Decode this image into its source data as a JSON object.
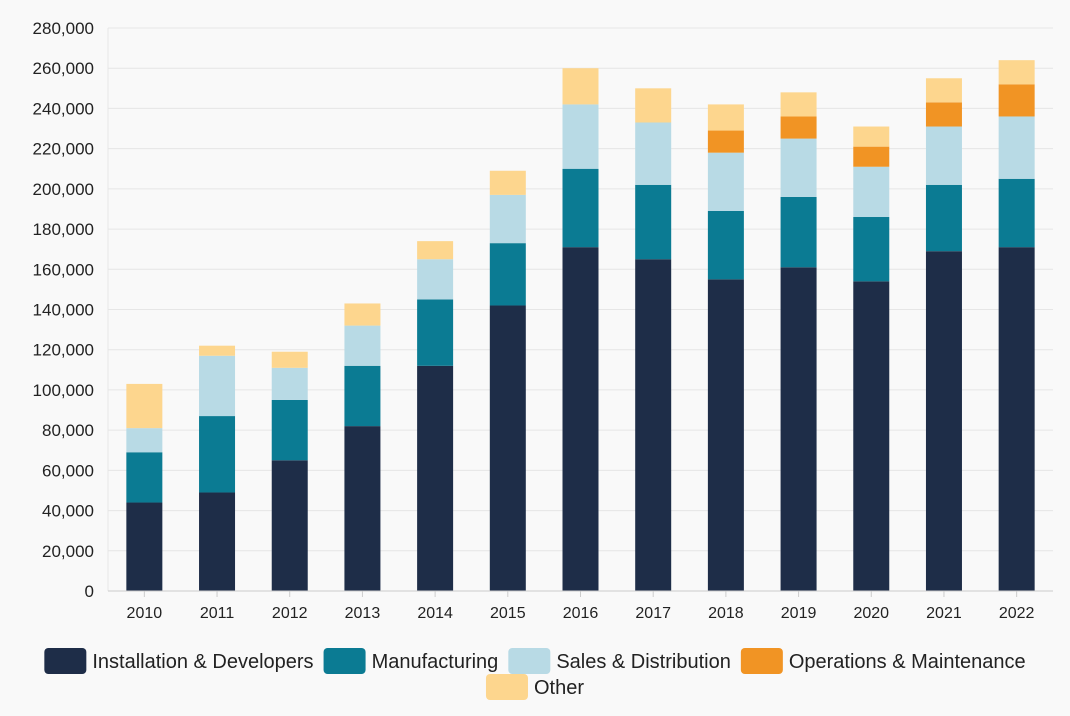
{
  "chart_data": {
    "type": "bar",
    "stacked": true,
    "title": "",
    "xlabel": "",
    "ylabel": "",
    "ylim": [
      0,
      280000
    ],
    "y_ticks": [
      0,
      20000,
      40000,
      60000,
      80000,
      100000,
      120000,
      140000,
      160000,
      180000,
      200000,
      220000,
      240000,
      260000,
      280000
    ],
    "y_tick_labels": [
      "0",
      "20,000",
      "40,000",
      "60,000",
      "80,000",
      "100,000",
      "120,000",
      "140,000",
      "160,000",
      "180,000",
      "200,000",
      "220,000",
      "240,000",
      "260,000",
      "280,000"
    ],
    "grid": true,
    "legend_position": "bottom",
    "categories": [
      "2010",
      "2011",
      "2012",
      "2013",
      "2014",
      "2015",
      "2016",
      "2017",
      "2018",
      "2019",
      "2020",
      "2021",
      "2022"
    ],
    "series": [
      {
        "name": "Installation & Developers",
        "color": "#1e2d48",
        "values": [
          44000,
          49000,
          65000,
          82000,
          112000,
          142000,
          171000,
          165000,
          155000,
          161000,
          154000,
          169000,
          171000
        ]
      },
      {
        "name": "Manufacturing",
        "color": "#0b7b93",
        "values": [
          25000,
          38000,
          30000,
          30000,
          33000,
          31000,
          39000,
          37000,
          34000,
          35000,
          32000,
          33000,
          34000
        ]
      },
      {
        "name": "Sales & Distribution",
        "color": "#b8dae5",
        "values": [
          12000,
          30000,
          16000,
          20000,
          20000,
          24000,
          32000,
          31000,
          29000,
          29000,
          25000,
          29000,
          31000
        ]
      },
      {
        "name": "Operations & Maintenance",
        "color": "#f19424",
        "values": [
          0,
          0,
          0,
          0,
          0,
          0,
          0,
          0,
          11000,
          11000,
          10000,
          12000,
          16000
        ]
      },
      {
        "name": "Other",
        "color": "#fdd68e",
        "values": [
          22000,
          5000,
          8000,
          11000,
          9000,
          12000,
          18000,
          17000,
          13000,
          12000,
          10000,
          12000,
          12000
        ]
      }
    ]
  }
}
